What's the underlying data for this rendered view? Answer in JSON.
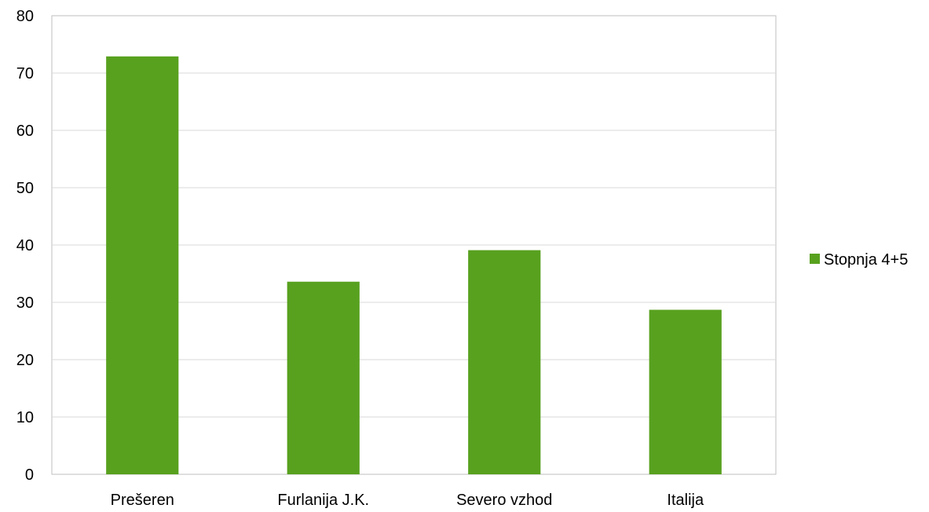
{
  "chart_data": {
    "type": "bar",
    "categories": [
      "Prešeren",
      "Furlanija J.K.",
      "Severo vzhod",
      "Italija"
    ],
    "series": [
      {
        "name": "Stopnja 4+5",
        "values": [
          72.9,
          33.6,
          39.1,
          28.7
        ],
        "color": "#58a11f"
      }
    ],
    "ylim": [
      0,
      80
    ],
    "yticks": [
      0,
      10,
      20,
      30,
      40,
      50,
      60,
      70,
      80
    ],
    "grid": true,
    "legend_position": "right"
  }
}
